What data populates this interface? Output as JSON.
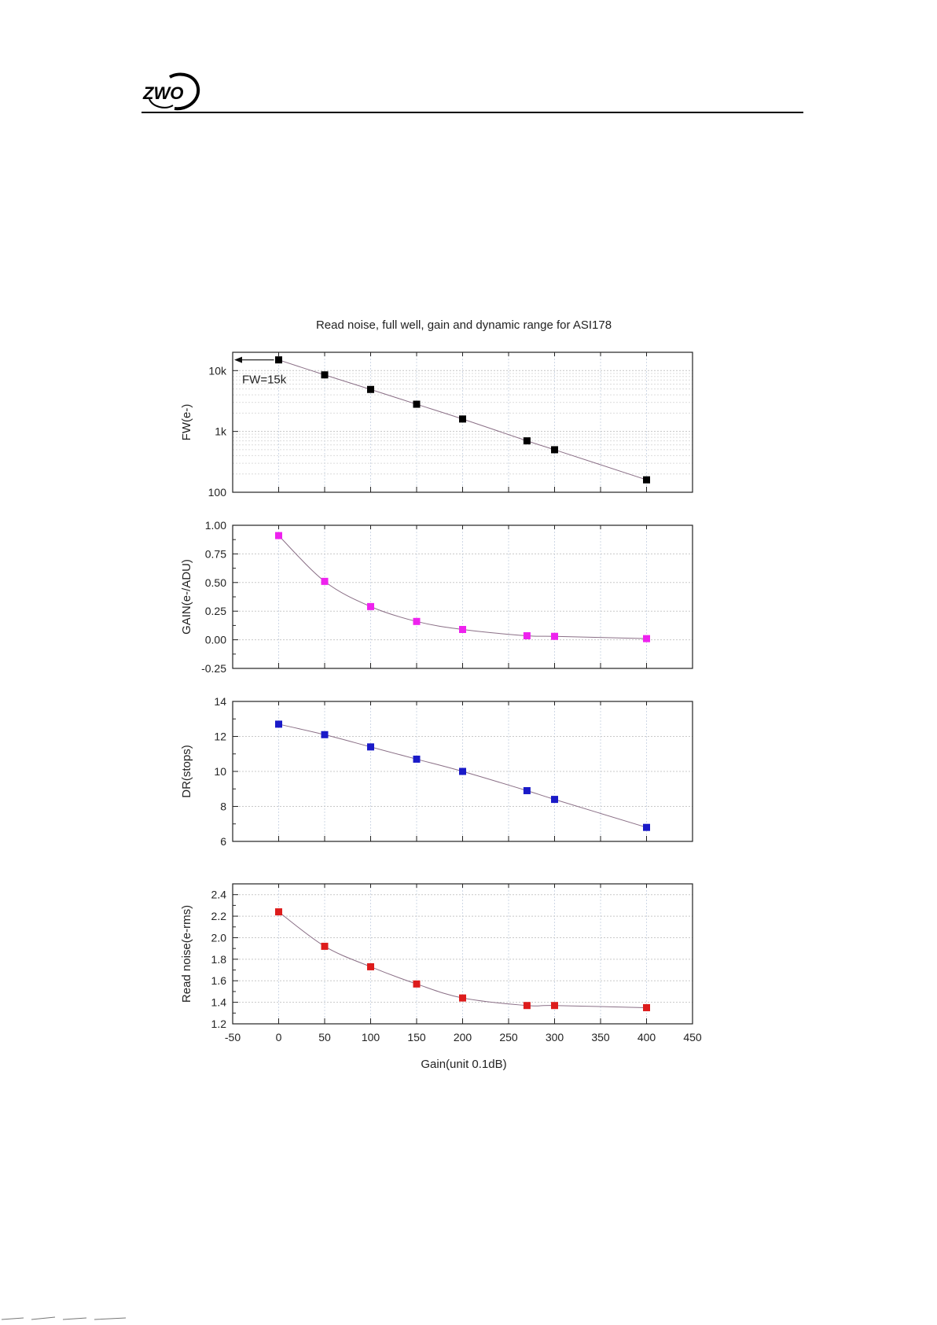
{
  "header": {
    "logo_text": "ZWO",
    "colors": {
      "rule": "#000000",
      "logo": "#000000"
    }
  },
  "chart_data": {
    "type": "scatter",
    "title": "Read noise, full well, gain and dynamic range for ASI178",
    "xlabel": "Gain(unit 0.1dB)",
    "xlim": [
      -50,
      450
    ],
    "xticks": [
      -50,
      0,
      50,
      100,
      150,
      200,
      250,
      300,
      350,
      400,
      450
    ],
    "x": [
      0,
      50,
      100,
      150,
      200,
      270,
      300,
      400
    ],
    "grid": true,
    "panels": [
      {
        "key": "fw",
        "ylabel": "FW(e-)",
        "scale": "log",
        "ylim": [
          100,
          20000
        ],
        "yticks": [
          100,
          1000,
          10000
        ],
        "ytick_labels": [
          "100",
          "1k",
          "10k"
        ],
        "color": "#000000",
        "values": [
          15000,
          8500,
          4900,
          2800,
          1600,
          700,
          500,
          160
        ],
        "annotation": "FW=15k"
      },
      {
        "key": "gain",
        "ylabel": "GAIN(e-/ADU)",
        "scale": "linear",
        "ylim": [
          -0.25,
          1.0
        ],
        "yticks": [
          -0.25,
          0.0,
          0.25,
          0.5,
          0.75,
          1.0
        ],
        "ytick_labels": [
          "-0.25",
          "0.00",
          "0.25",
          "0.50",
          "0.75",
          "1.00"
        ],
        "color": "#ee22ee",
        "values": [
          0.91,
          0.51,
          0.29,
          0.16,
          0.09,
          0.035,
          0.03,
          0.01
        ]
      },
      {
        "key": "dr",
        "ylabel": "DR(stops)",
        "scale": "linear",
        "ylim": [
          6,
          14
        ],
        "yticks": [
          6,
          8,
          10,
          12,
          14
        ],
        "ytick_labels": [
          "6",
          "8",
          "10",
          "12",
          "14"
        ],
        "color": "#1a1ac8",
        "values": [
          12.7,
          12.1,
          11.4,
          10.7,
          10.0,
          8.9,
          8.4,
          6.8
        ]
      },
      {
        "key": "rn",
        "ylabel": "Read noise(e-rms)",
        "scale": "linear",
        "ylim": [
          1.2,
          2.5
        ],
        "yticks": [
          1.2,
          1.4,
          1.6,
          1.8,
          2.0,
          2.2,
          2.4
        ],
        "ytick_labels": [
          "1.2",
          "1.4",
          "1.6",
          "1.8",
          "2.0",
          "2.2",
          "2.4"
        ],
        "color": "#dd1c1c",
        "values": [
          2.24,
          1.92,
          1.73,
          1.57,
          1.44,
          1.37,
          1.37,
          1.35
        ]
      }
    ]
  }
}
